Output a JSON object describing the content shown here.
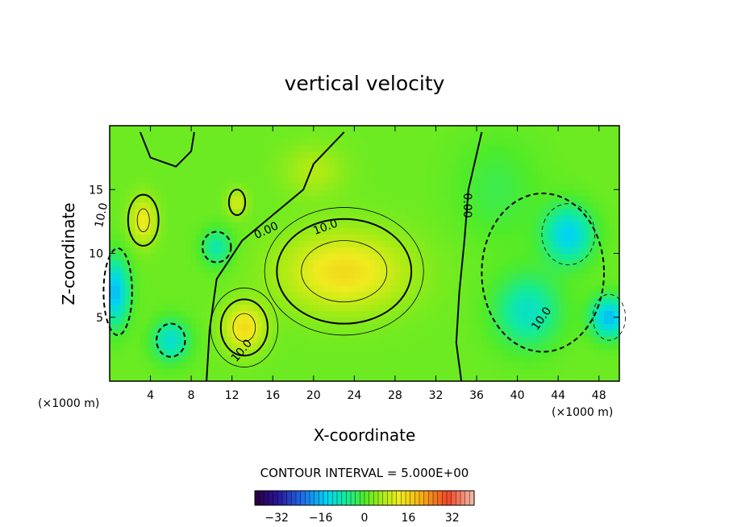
{
  "chart_data": {
    "type": "heatmap",
    "title": "vertical velocity",
    "xlabel": "X-coordinate",
    "ylabel": "Z-coordinate",
    "x_unit": "(×1000 m)",
    "z_unit": "(×1000 m)",
    "xlim": [
      0,
      50
    ],
    "ylim": [
      0,
      20
    ],
    "x_ticks": [
      "4",
      "8",
      "12",
      "16",
      "20",
      "24",
      "28",
      "32",
      "36",
      "40",
      "44",
      "48"
    ],
    "y_ticks": [
      "5",
      "10",
      "15"
    ],
    "contour_interval_text": "CONTOUR INTERVAL = 5.000E+00",
    "contour_labels": [
      "10.0",
      "0.00",
      "10.0",
      "0.00",
      "10.0",
      "10.0"
    ],
    "colorbar": {
      "range": [
        -40,
        40
      ],
      "tick_labels": [
        "-32",
        "-16",
        "0",
        "16",
        "32"
      ],
      "tick_values": [
        -32,
        -16,
        0,
        16,
        32
      ]
    },
    "features": [
      {
        "kind": "updraft",
        "x": 23,
        "z": 8.5,
        "w": 13
      },
      {
        "kind": "updraft",
        "x": 13.2,
        "z": 4.2,
        "w": 13
      },
      {
        "kind": "updraft",
        "x": 3.3,
        "z": 12.5,
        "w": 11
      },
      {
        "kind": "downdraft",
        "x": 45,
        "z": 11.5,
        "w": -18
      },
      {
        "kind": "downdraft",
        "x": 49,
        "z": 5,
        "w": -20
      },
      {
        "kind": "downdraft",
        "x": 0.5,
        "z": 7,
        "w": -20
      },
      {
        "kind": "downdraft",
        "x": 6,
        "z": 3,
        "w": -14
      }
    ]
  }
}
